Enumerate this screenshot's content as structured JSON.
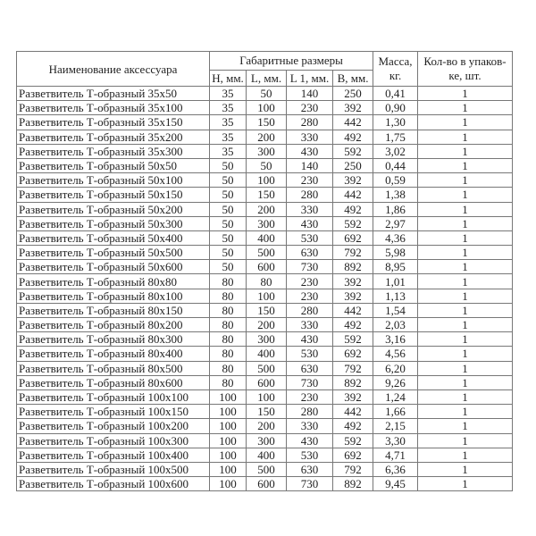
{
  "header": {
    "name": "Наименование аксессуара",
    "dimensions": "Габаритные размеры",
    "h": "H, мм.",
    "l": "L, мм.",
    "l1": "L 1, мм.",
    "b": "B, мм.",
    "mass": "Масса, кг.",
    "qty": "Кол-во в упаков-ке, шт."
  },
  "rows": [
    [
      "Разветвитель Т-образный 35х50",
      "35",
      "50",
      "140",
      "250",
      "0,41",
      "1"
    ],
    [
      "Разветвитель Т-образный 35х100",
      "35",
      "100",
      "230",
      "392",
      "0,90",
      "1"
    ],
    [
      "Разветвитель Т-образный 35х150",
      "35",
      "150",
      "280",
      "442",
      "1,30",
      "1"
    ],
    [
      "Разветвитель Т-образный 35х200",
      "35",
      "200",
      "330",
      "492",
      "1,75",
      "1"
    ],
    [
      "Разветвитель Т-образный 35х300",
      "35",
      "300",
      "430",
      "592",
      "3,02",
      "1"
    ],
    [
      "Разветвитель Т-образный 50х50",
      "50",
      "50",
      "140",
      "250",
      "0,44",
      "1"
    ],
    [
      "Разветвитель Т-образный 50х100",
      "50",
      "100",
      "230",
      "392",
      "0,59",
      "1"
    ],
    [
      "Разветвитель Т-образный 50х150",
      "50",
      "150",
      "280",
      "442",
      "1,38",
      "1"
    ],
    [
      "Разветвитель Т-образный 50х200",
      "50",
      "200",
      "330",
      "492",
      "1,86",
      "1"
    ],
    [
      "Разветвитель Т-образный 50х300",
      "50",
      "300",
      "430",
      "592",
      "2,97",
      "1"
    ],
    [
      "Разветвитель Т-образный 50х400",
      "50",
      "400",
      "530",
      "692",
      "4,36",
      "1"
    ],
    [
      "Разветвитель Т-образный 50х500",
      "50",
      "500",
      "630",
      "792",
      "5,98",
      "1"
    ],
    [
      "Разветвитель Т-образный 50х600",
      "50",
      "600",
      "730",
      "892",
      "8,95",
      "1"
    ],
    [
      "Разветвитель Т-образный 80х80",
      "80",
      "80",
      "230",
      "392",
      "1,01",
      "1"
    ],
    [
      "Разветвитель Т-образный 80х100",
      "80",
      "100",
      "230",
      "392",
      "1,13",
      "1"
    ],
    [
      "Разветвитель Т-образный 80х150",
      "80",
      "150",
      "280",
      "442",
      "1,54",
      "1"
    ],
    [
      "Разветвитель Т-образный 80х200",
      "80",
      "200",
      "330",
      "492",
      "2,03",
      "1"
    ],
    [
      "Разветвитель Т-образный 80х300",
      "80",
      "300",
      "430",
      "592",
      "3,16",
      "1"
    ],
    [
      "Разветвитель Т-образный 80х400",
      "80",
      "400",
      "530",
      "692",
      "4,56",
      "1"
    ],
    [
      "Разветвитель Т-образный 80х500",
      "80",
      "500",
      "630",
      "792",
      "6,20",
      "1"
    ],
    [
      "Разветвитель Т-образный 80х600",
      "80",
      "600",
      "730",
      "892",
      "9,26",
      "1"
    ],
    [
      "Разветвитель Т-образный 100х100",
      "100",
      "100",
      "230",
      "392",
      "1,24",
      "1"
    ],
    [
      "Разветвитель Т-образный 100х150",
      "100",
      "150",
      "280",
      "442",
      "1,66",
      "1"
    ],
    [
      "Разветвитель Т-образный 100х200",
      "100",
      "200",
      "330",
      "492",
      "2,15",
      "1"
    ],
    [
      "Разветвитель Т-образный 100х300",
      "100",
      "300",
      "430",
      "592",
      "3,30",
      "1"
    ],
    [
      "Разветвитель Т-образный 100х400",
      "100",
      "400",
      "530",
      "692",
      "4,71",
      "1"
    ],
    [
      "Разветвитель Т-образный 100х500",
      "100",
      "500",
      "630",
      "792",
      "6,36",
      "1"
    ],
    [
      "Разветвитель Т-образный 100х600",
      "100",
      "600",
      "730",
      "892",
      "9,45",
      "1"
    ]
  ]
}
